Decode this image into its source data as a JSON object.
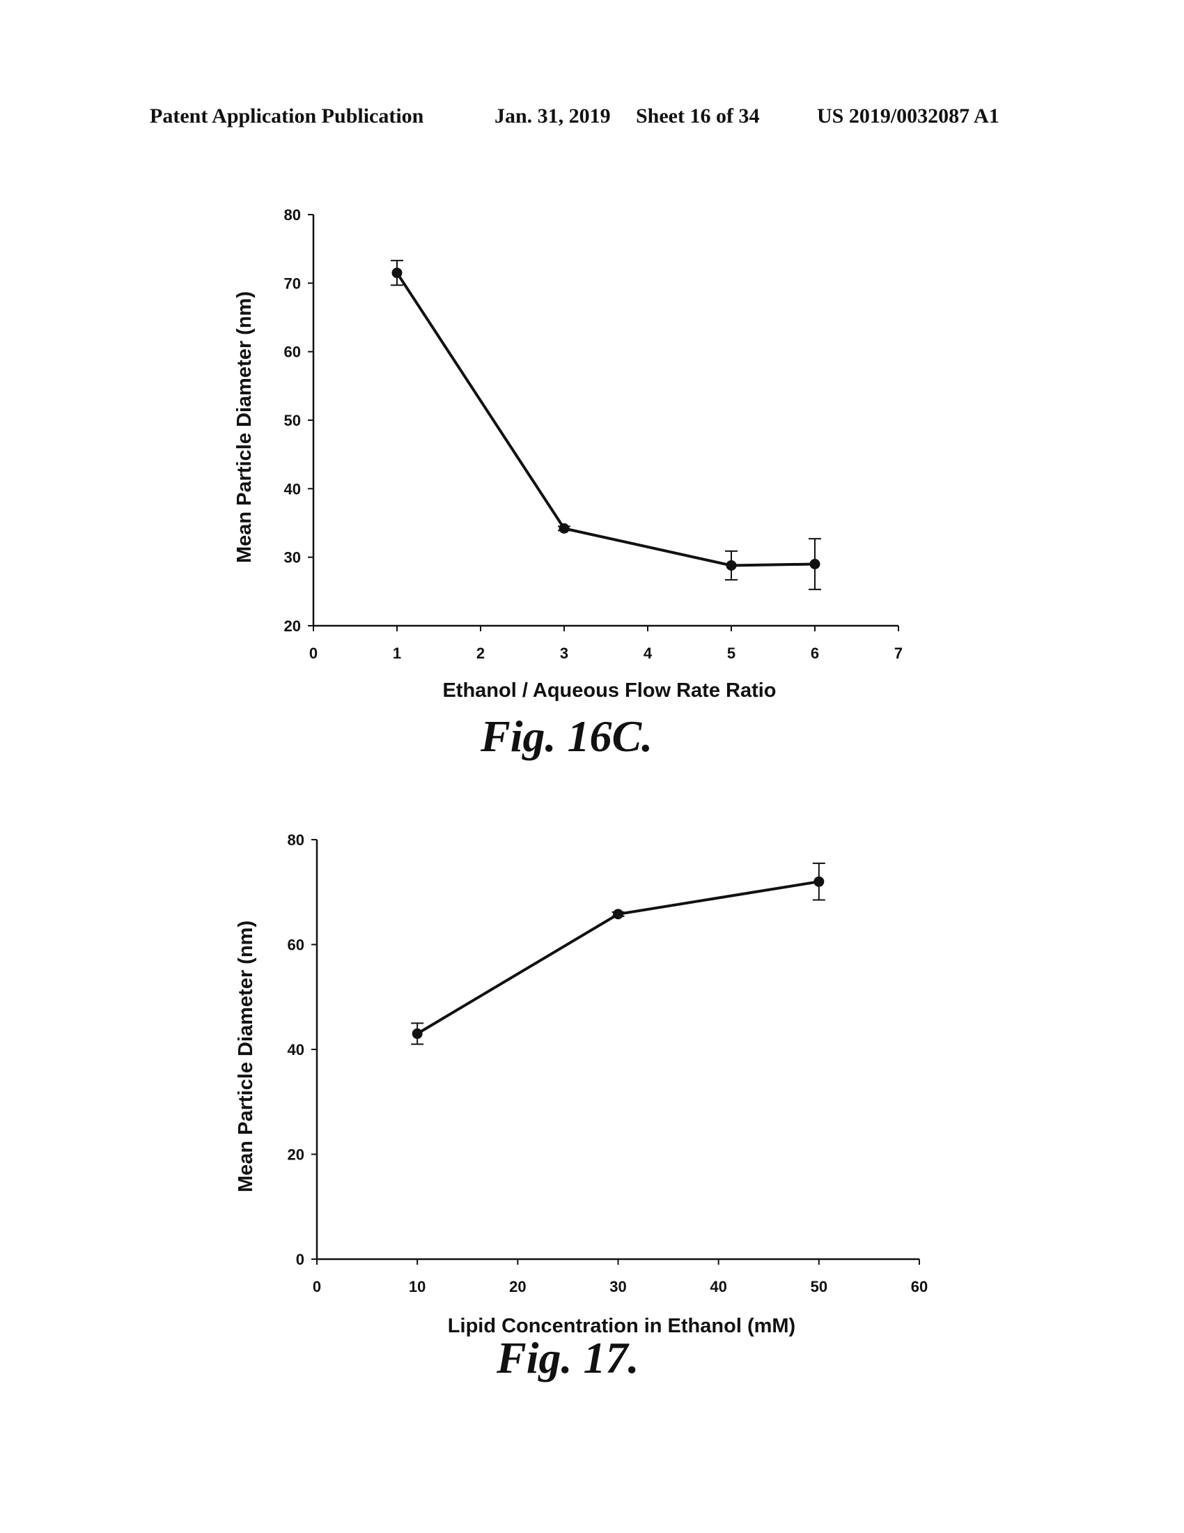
{
  "header": {
    "publication": "Patent Application Publication",
    "date": "Jan. 31, 2019",
    "sheet": "Sheet 16 of 34",
    "number": "US 2019/0032087 A1"
  },
  "figures": [
    {
      "caption": "Fig. 16C."
    },
    {
      "caption": "Fig. 17."
    }
  ],
  "chart_data": [
    {
      "type": "line",
      "xlabel": "Ethanol / Aqueous Flow Rate Ratio",
      "ylabel": "Mean Particle Diameter (nm)",
      "xlim": [
        0,
        7
      ],
      "ylim": [
        20,
        80
      ],
      "xticks": [
        0,
        1,
        2,
        3,
        4,
        5,
        6,
        7
      ],
      "yticks": [
        20,
        30,
        40,
        50,
        60,
        70,
        80
      ],
      "grid": false,
      "x": [
        1,
        3,
        5,
        6
      ],
      "y": [
        71.5,
        34.2,
        28.8,
        29.0
      ],
      "error": [
        1.8,
        0.3,
        2.1,
        3.7
      ]
    },
    {
      "type": "line",
      "xlabel": "Lipid Concentration in Ethanol (mM)",
      "ylabel": "Mean Particle Diameter (nm)",
      "xlim": [
        0,
        60
      ],
      "ylim": [
        0,
        80
      ],
      "xticks": [
        0,
        10,
        20,
        30,
        40,
        50,
        60
      ],
      "yticks": [
        0,
        20,
        40,
        60,
        80
      ],
      "grid": false,
      "x": [
        10,
        30,
        50
      ],
      "y": [
        43.0,
        65.8,
        72.0
      ],
      "error": [
        2.0,
        0.4,
        3.5
      ]
    }
  ]
}
